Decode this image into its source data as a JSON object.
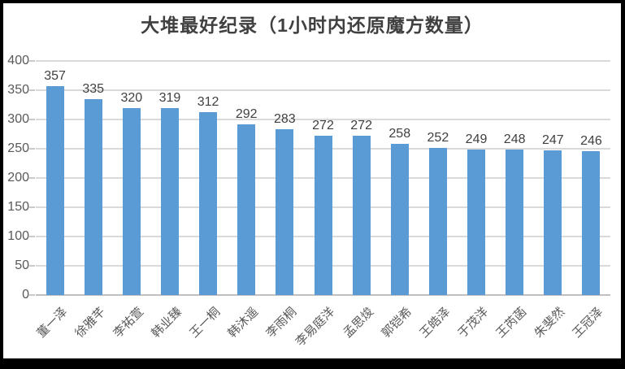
{
  "chart_data": {
    "type": "bar",
    "title": "大堆最好纪录（1小时内还原魔方数量）",
    "categories": [
      "董一泽",
      "徐雅芊",
      "李祐萱",
      "韩业臻",
      "王一桐",
      "韩沐遥",
      "李雨桐",
      "李易庭洋",
      "孟思焌",
      "郭铠希",
      "王皓泽",
      "于茂洋",
      "王芮菡",
      "朱斐然",
      "王冠泽"
    ],
    "values": [
      357,
      335,
      320,
      319,
      312,
      292,
      283,
      272,
      272,
      258,
      252,
      249,
      248,
      247,
      246
    ],
    "xlabel": "",
    "ylabel": "",
    "ylim": [
      0,
      400
    ],
    "yticks": [
      0,
      50,
      100,
      150,
      200,
      250,
      300,
      350,
      400
    ],
    "grid": true,
    "legend": "none",
    "data_labels": true,
    "x_label_rotation_deg": -45
  },
  "colors": {
    "bar_fill": "#5B9BD5",
    "gridline": "#D9D9D9",
    "axis_line": "#C0C0C0",
    "title_text": "#404040",
    "data_label_text": "#404040",
    "axis_label_text": "#595959",
    "chart_background": "#FFFFFF",
    "outer_frame": "#000000"
  }
}
